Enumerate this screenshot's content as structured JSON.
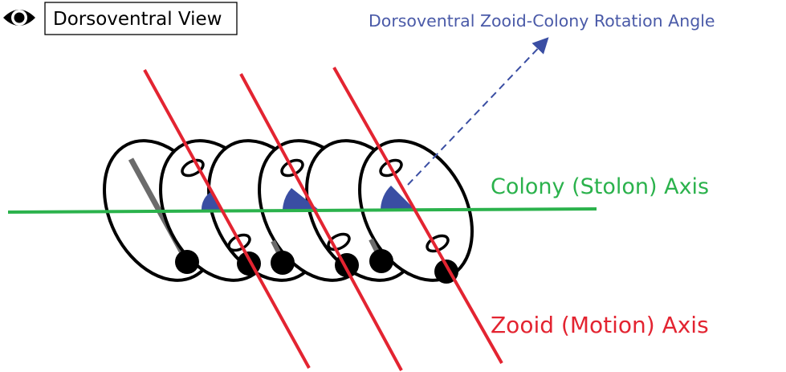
{
  "view_badge": {
    "label": "Dorsoventral View",
    "icon": "eye-icon"
  },
  "labels": {
    "rotation_angle": "Dorsoventral Zooid-Colony Rotation Angle",
    "colony_axis": "Colony (Stolon) Axis",
    "zooid_axis": "Zooid (Motion) Axis"
  },
  "colors": {
    "colony_axis": "#2bb24c",
    "zooid_axis": "#e32431",
    "angle": "#3a4ea3",
    "rotation_label": "#4a5aa8",
    "outline": "#000000"
  }
}
